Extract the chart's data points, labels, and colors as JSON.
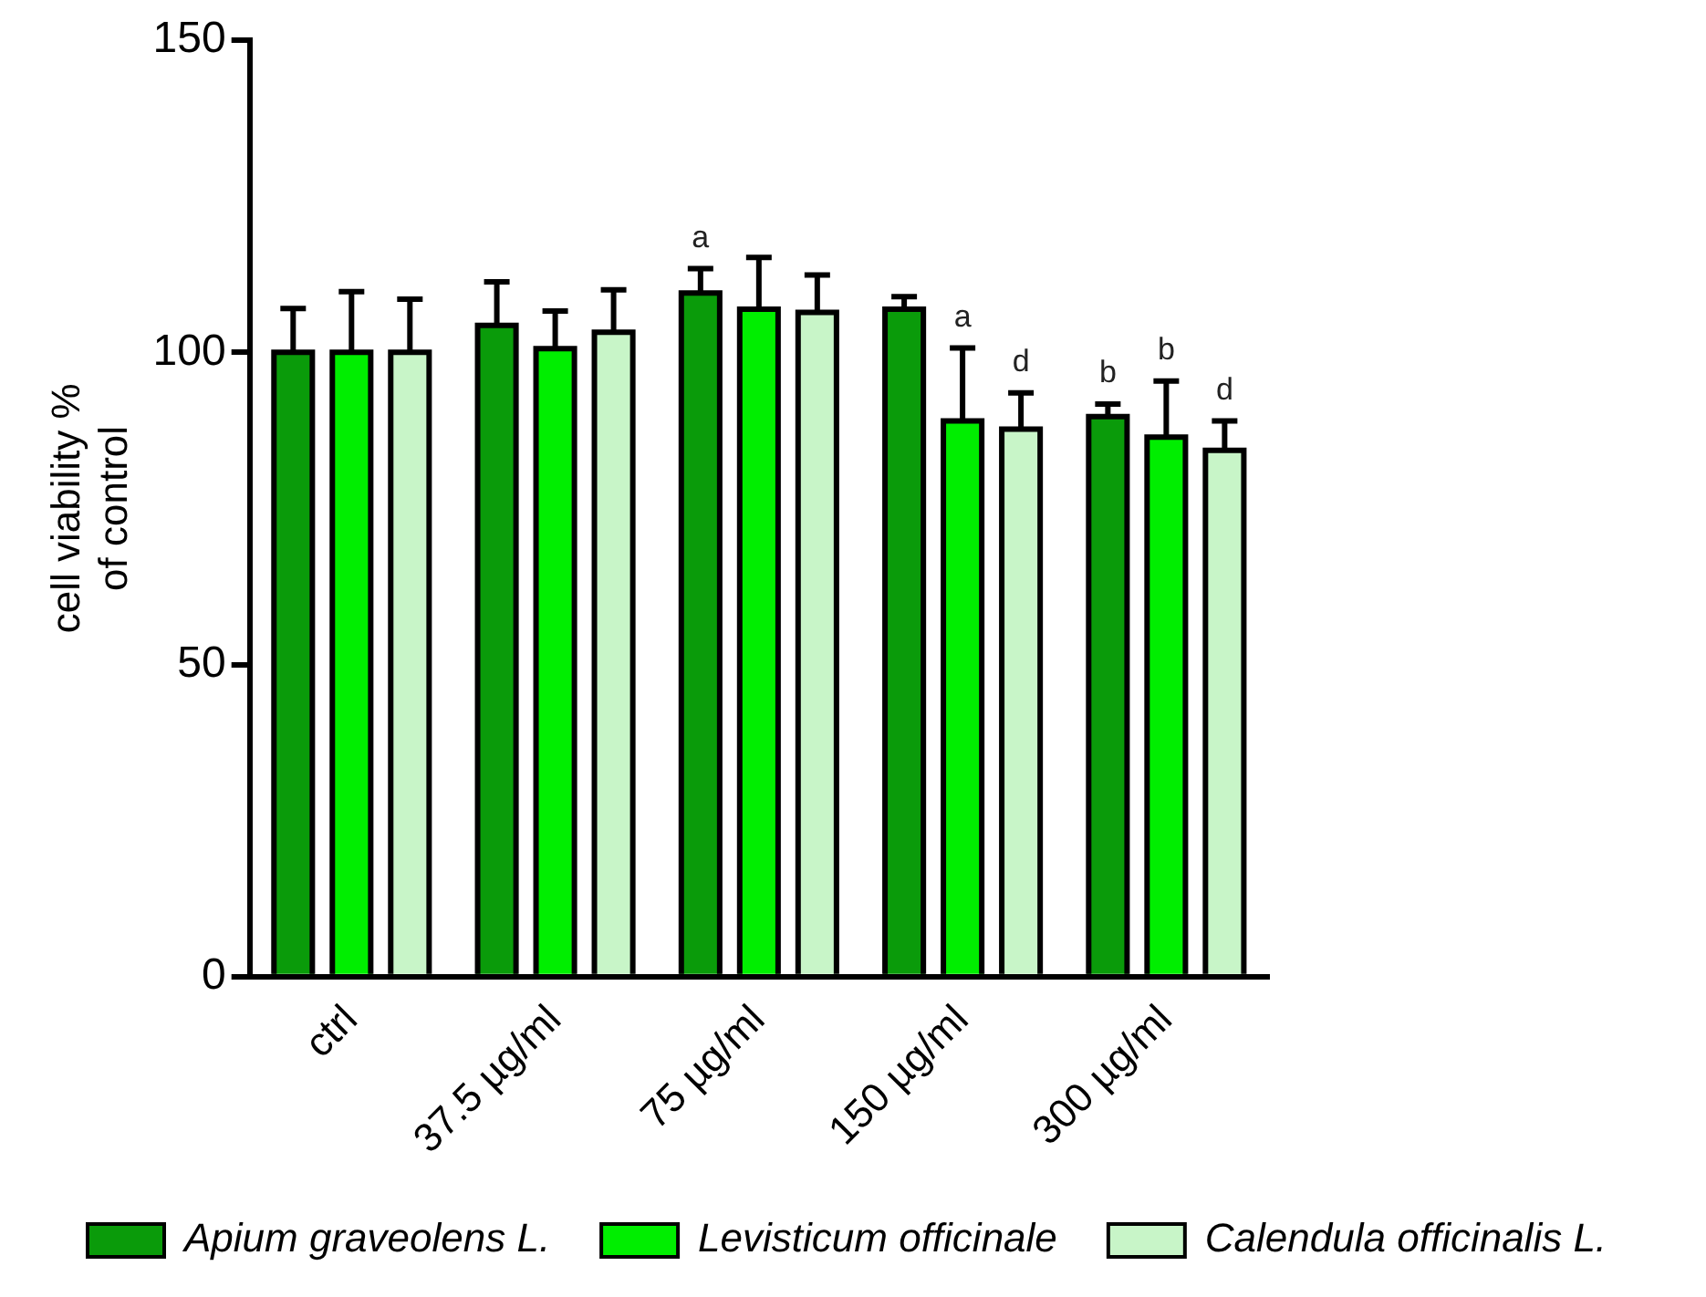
{
  "chart_data": {
    "type": "bar",
    "ylabel": "cell viability %\nof control",
    "categories": [
      "ctrl",
      "37.5 µg/ml",
      "75 µg/ml",
      "150 µg/ml",
      "300 µg/ml"
    ],
    "series": [
      {
        "name": "Apium graveolens L.",
        "color": "#0a9b0a",
        "values": [
          100,
          104.3,
          109.5,
          106.9,
          89.7
        ],
        "errors": [
          7,
          7,
          3.9,
          2,
          2
        ],
        "value_labels": [
          null,
          null,
          "a",
          null,
          "b"
        ]
      },
      {
        "name": "Levisticum officinale",
        "color": "#00ee00",
        "values": [
          100,
          100.6,
          106.9,
          89,
          86.4
        ],
        "errors": [
          9.7,
          6,
          8.3,
          11.7,
          9
        ],
        "value_labels": [
          null,
          null,
          null,
          "a",
          "b"
        ]
      },
      {
        "name": "Calendula officinalis L.",
        "color": "#c8f5c8",
        "values": [
          100,
          103.2,
          106.4,
          87.7,
          84.3
        ],
        "errors": [
          8.5,
          6.8,
          6,
          5.8,
          4.7
        ],
        "value_labels": [
          null,
          null,
          null,
          "d",
          "d"
        ]
      }
    ],
    "ylim": [
      0,
      150
    ],
    "yticks": [
      0,
      50,
      100,
      150
    ],
    "grid": false,
    "legend": "bottom"
  }
}
